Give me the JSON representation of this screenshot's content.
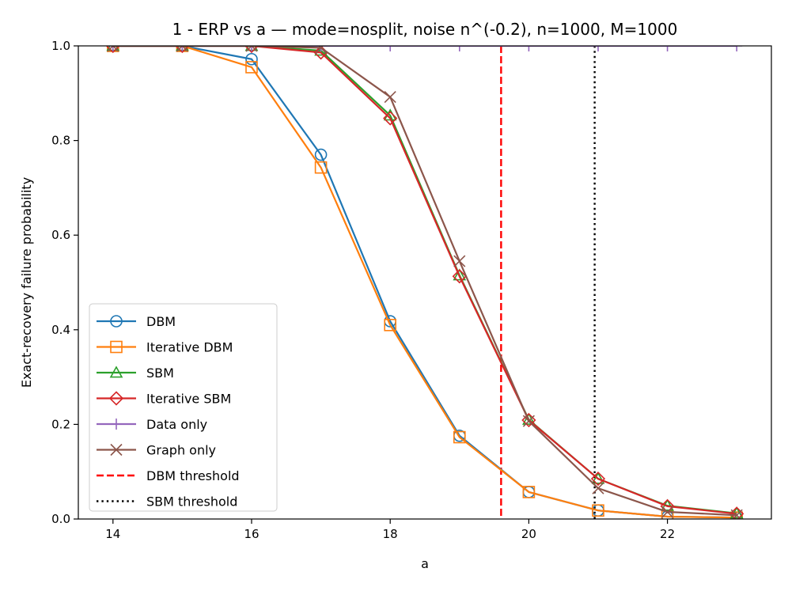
{
  "chart_data": {
    "type": "line",
    "title": "1 - ERP vs a — mode=nosplit, noise n^(-0.2), n=1000, M=1000",
    "xlabel": "a",
    "ylabel": "Exact-recovery failure probability",
    "xlim": [
      13.5,
      23.5
    ],
    "ylim": [
      0.0,
      1.0
    ],
    "xticks": [
      14,
      16,
      18,
      20,
      22
    ],
    "yticks": [
      0.0,
      0.2,
      0.4,
      0.6,
      0.8,
      1.0
    ],
    "xtick_labels": [
      "14",
      "16",
      "18",
      "20",
      "22"
    ],
    "ytick_labels": [
      "0.0",
      "0.2",
      "0.4",
      "0.6",
      "0.8",
      "1.0"
    ],
    "grid": false,
    "legend_position": "lower-left",
    "x": [
      14,
      15,
      16,
      17,
      18,
      19,
      20,
      21,
      22,
      23
    ],
    "series": [
      {
        "name": "DBM",
        "color": "#1f77b4",
        "marker": "circle",
        "values": [
          1.0,
          1.0,
          0.972,
          0.77,
          0.418,
          0.176,
          0.057,
          0.018,
          0.005,
          0.003
        ]
      },
      {
        "name": "Iterative DBM",
        "color": "#ff7f0e",
        "marker": "square",
        "values": [
          1.0,
          1.0,
          0.955,
          0.743,
          0.41,
          0.173,
          0.057,
          0.018,
          0.005,
          0.003
        ]
      },
      {
        "name": "SBM",
        "color": "#2ca02c",
        "marker": "triangle",
        "values": [
          1.0,
          1.0,
          1.0,
          0.99,
          0.853,
          0.515,
          0.21,
          0.085,
          0.028,
          0.012
        ]
      },
      {
        "name": "Iterative SBM",
        "color": "#d62728",
        "marker": "diamond",
        "values": [
          1.0,
          1.0,
          1.0,
          0.986,
          0.847,
          0.513,
          0.209,
          0.085,
          0.027,
          0.011
        ]
      },
      {
        "name": "Data only",
        "color": "#9467bd",
        "marker": "plus",
        "values": [
          1.0,
          1.0,
          1.0,
          1.0,
          1.0,
          1.0,
          1.0,
          1.0,
          1.0,
          1.0
        ]
      },
      {
        "name": "Graph only",
        "color": "#8c564b",
        "marker": "x",
        "values": [
          1.0,
          1.0,
          1.0,
          0.996,
          0.892,
          0.545,
          0.207,
          0.065,
          0.015,
          0.008
        ]
      }
    ],
    "thresholds": [
      {
        "name": "DBM threshold",
        "x": 19.6,
        "color": "#ff0000",
        "style": "dashed"
      },
      {
        "name": "SBM threshold",
        "x": 20.95,
        "color": "#000000",
        "style": "dotted"
      }
    ]
  }
}
